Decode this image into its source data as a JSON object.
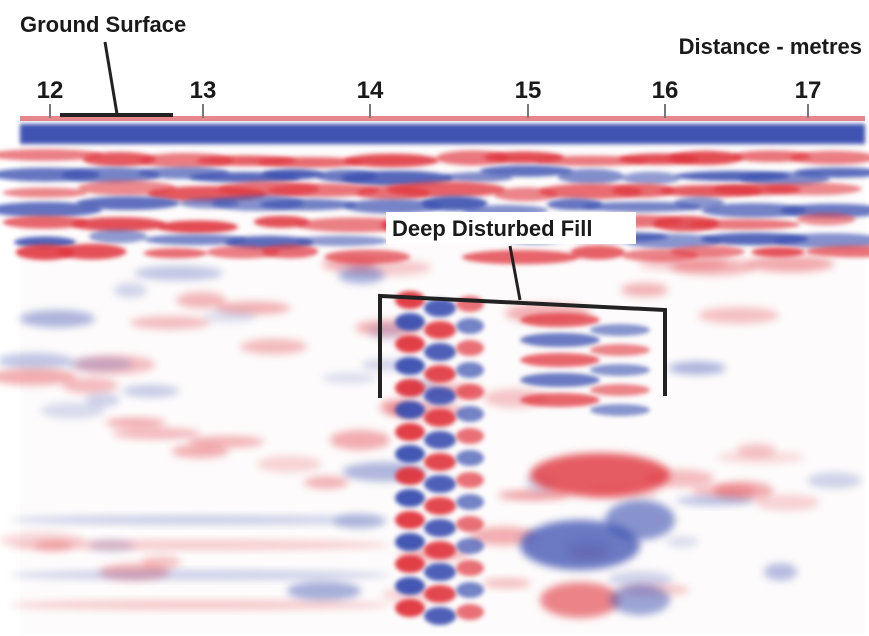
{
  "annotations": {
    "ground_surface": "Ground Surface",
    "deep_disturbed_fill": "Deep Disturbed Fill"
  },
  "distance_axis": {
    "label": "Distance - metres",
    "ticks": [
      12,
      13,
      14,
      15,
      16,
      17
    ]
  }
}
